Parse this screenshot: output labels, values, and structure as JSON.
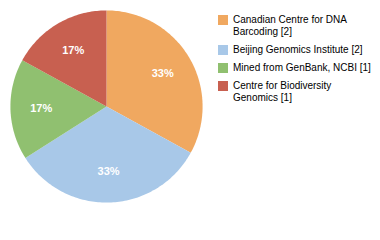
{
  "chart_data": {
    "type": "pie",
    "categories": [
      "Canadian Centre for DNA\nBarcoding [2]",
      "Beijing Genomics Institute [2]",
      "Mined from GenBank, NCBI [1]",
      "Centre for Biodiversity\nGenomics [1]"
    ],
    "values": [
      33,
      33,
      17,
      17
    ],
    "value_labels": [
      "33%",
      "33%",
      "17%",
      "17%"
    ],
    "colors": [
      "#F0A860",
      "#A8C8E8",
      "#90C070",
      "#C86050"
    ],
    "data_labels": true,
    "legend": "right"
  }
}
